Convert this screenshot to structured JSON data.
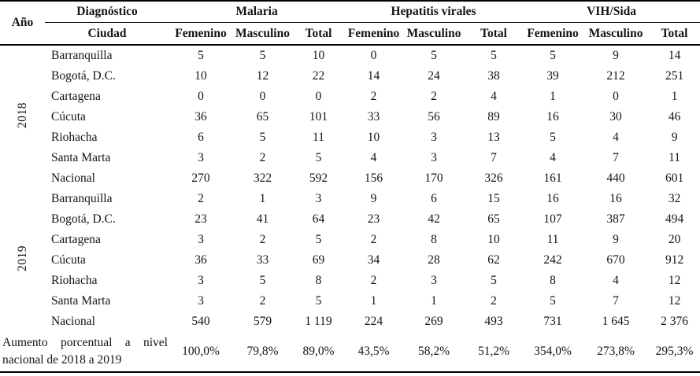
{
  "table": {
    "header": {
      "ano": "Año",
      "diagnostico": "Diagnóstico",
      "ciudad": "Ciudad",
      "groups": [
        {
          "label": "Malaria"
        },
        {
          "label": "Hepatitis virales"
        },
        {
          "label": "VIH/Sida"
        }
      ],
      "subcols": [
        "Femenino",
        "Masculino",
        "Total"
      ]
    },
    "years": [
      {
        "year": "2018",
        "rows": [
          {
            "city": "Barranquilla",
            "values": [
              "5",
              "5",
              "10",
              "0",
              "5",
              "5",
              "5",
              "9",
              "14"
            ]
          },
          {
            "city": "Bogotá, D.C.",
            "values": [
              "10",
              "12",
              "22",
              "14",
              "24",
              "38",
              "39",
              "212",
              "251"
            ]
          },
          {
            "city": "Cartagena",
            "values": [
              "0",
              "0",
              "0",
              "2",
              "2",
              "4",
              "1",
              "0",
              "1"
            ]
          },
          {
            "city": "Cúcuta",
            "values": [
              "36",
              "65",
              "101",
              "33",
              "56",
              "89",
              "16",
              "30",
              "46"
            ]
          },
          {
            "city": "Riohacha",
            "values": [
              "6",
              "5",
              "11",
              "10",
              "3",
              "13",
              "5",
              "4",
              "9"
            ]
          },
          {
            "city": "Santa Marta",
            "values": [
              "3",
              "2",
              "5",
              "4",
              "3",
              "7",
              "4",
              "7",
              "11"
            ]
          },
          {
            "city": "Nacional",
            "values": [
              "270",
              "322",
              "592",
              "156",
              "170",
              "326",
              "161",
              "440",
              "601"
            ]
          }
        ]
      },
      {
        "year": "2019",
        "rows": [
          {
            "city": "Barranquilla",
            "values": [
              "2",
              "1",
              "3",
              "9",
              "6",
              "15",
              "16",
              "16",
              "32"
            ]
          },
          {
            "city": "Bogotá, D.C.",
            "values": [
              "23",
              "41",
              "64",
              "23",
              "42",
              "65",
              "107",
              "387",
              "494"
            ]
          },
          {
            "city": "Cartagena",
            "values": [
              "3",
              "2",
              "5",
              "2",
              "8",
              "10",
              "11",
              "9",
              "20"
            ]
          },
          {
            "city": "Cúcuta",
            "values": [
              "36",
              "33",
              "69",
              "34",
              "28",
              "62",
              "242",
              "670",
              "912"
            ]
          },
          {
            "city": "Riohacha",
            "values": [
              "3",
              "5",
              "8",
              "2",
              "3",
              "5",
              "8",
              "4",
              "12"
            ]
          },
          {
            "city": "Santa Marta",
            "values": [
              "3",
              "2",
              "5",
              "1",
              "1",
              "2",
              "5",
              "7",
              "12"
            ]
          },
          {
            "city": "Nacional",
            "values": [
              "540",
              "579",
              "1 119",
              "224",
              "269",
              "493",
              "731",
              "1 645",
              "2 376"
            ]
          }
        ]
      }
    ],
    "footer": {
      "label": "Aumento porcentual a nivel nacional de 2018 a 2019",
      "values": [
        "100,0%",
        "79,8%",
        "89,0%",
        "43,5%",
        "58,2%",
        "51,2%",
        "354,0%",
        "273,8%",
        "295,3%"
      ]
    }
  }
}
